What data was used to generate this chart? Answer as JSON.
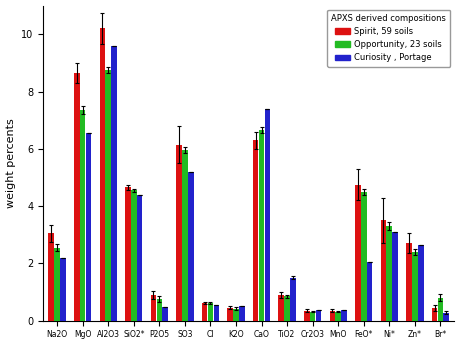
{
  "categories": [
    "Na2O",
    "MgO",
    "Al2O3",
    "SiO2*",
    "P2O5",
    "SO3",
    "Cl",
    "K2O",
    "CaO",
    "TiO2",
    "Cr2O3",
    "MnO",
    "FeO*",
    "Ni*",
    "Zn*",
    "Br*"
  ],
  "spirit": [
    3.05,
    8.65,
    10.2,
    4.65,
    0.9,
    6.15,
    0.62,
    0.45,
    6.3,
    0.9,
    0.35,
    0.35,
    4.75,
    3.5,
    2.7,
    0.45
  ],
  "opportunity": [
    2.55,
    7.35,
    8.75,
    4.55,
    0.75,
    5.95,
    0.62,
    0.42,
    6.65,
    0.85,
    0.32,
    0.32,
    4.5,
    3.3,
    2.4,
    0.8
  ],
  "curiosity": [
    2.2,
    6.55,
    9.6,
    4.4,
    0.48,
    5.2,
    0.55,
    0.5,
    7.4,
    1.5,
    0.38,
    0.38,
    2.05,
    3.1,
    2.65,
    0.28
  ],
  "spirit_err": [
    0.3,
    0.35,
    0.55,
    0.08,
    0.15,
    0.65,
    0.05,
    0.05,
    0.3,
    0.1,
    0.05,
    0.05,
    0.55,
    0.8,
    0.35,
    0.1
  ],
  "opportunity_err": [
    0.12,
    0.15,
    0.1,
    0.05,
    0.1,
    0.1,
    0.02,
    0.05,
    0.1,
    0.05,
    0.03,
    0.03,
    0.1,
    0.15,
    0.12,
    0.12
  ],
  "curiosity_err": [
    0.0,
    0.0,
    0.0,
    0.0,
    0.0,
    0.0,
    0.0,
    0.0,
    0.0,
    0.05,
    0.0,
    0.0,
    0.0,
    0.0,
    0.0,
    0.05
  ],
  "color_spirit": "#dd1111",
  "color_opportunity": "#22bb22",
  "color_curiosity": "#2222cc",
  "legend_title": "APXS derived compositions",
  "legend_labels": [
    "Spirit, 59 soils",
    "Opportunity, 23 soils",
    "Curiosity , Portage"
  ],
  "ylabel": "weight percents",
  "ylim": [
    0,
    11
  ],
  "background_color": "#ffffff",
  "yticks": [
    0,
    2,
    4,
    6,
    8,
    10
  ]
}
